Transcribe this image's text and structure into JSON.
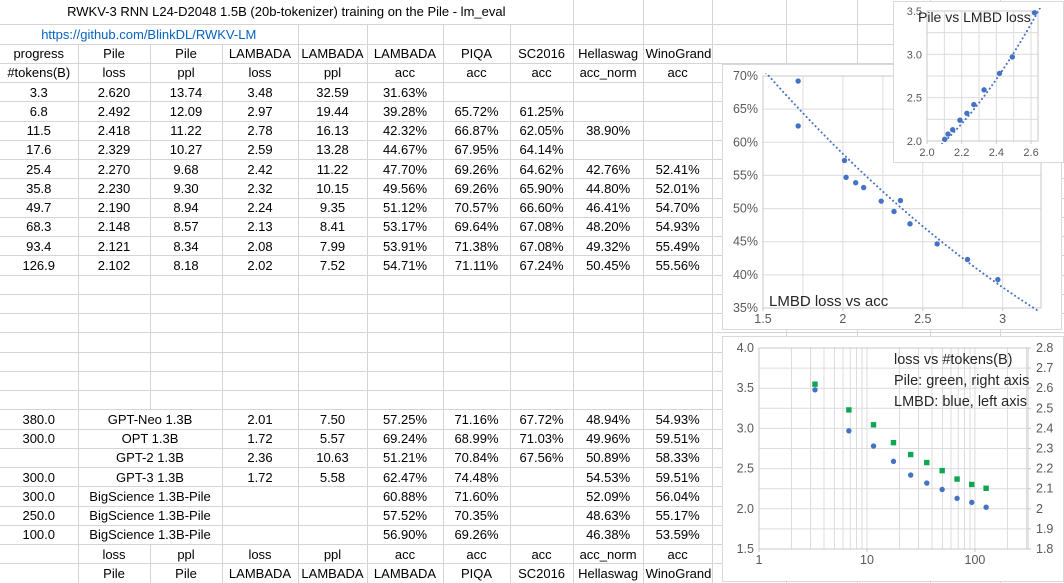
{
  "sheet_title": "RWKV-3 RNN L24-D2048 1.5B (20b-tokenizer) training on the Pile - lm_eval",
  "link_url": "https://github.com/BlinkDL/RWKV-LM",
  "colors": {
    "link_blue": "#0563C1",
    "series_blue": "#4472C4",
    "series_green": "#0CA750",
    "sheet_gridline": "#d4d4d4",
    "chart_gridline": "#dcdcdc",
    "chart_border": "#c8c8c8",
    "tick_text": "#595959"
  },
  "table": {
    "header_row1": [
      "progress",
      "Pile",
      "Pile",
      "LAMBADA",
      "LAMBADA",
      "LAMBADA",
      "PIQA",
      "SC2016",
      "Hellaswag",
      "WinoGrande"
    ],
    "header_row2": [
      "#tokens(B)",
      "loss",
      "ppl",
      "loss",
      "ppl",
      "acc",
      "acc",
      "acc",
      "acc_norm",
      "acc"
    ],
    "rwkv_rows": [
      [
        "3.3",
        "2.620",
        "13.74",
        "3.48",
        "32.59",
        "31.63%",
        "",
        "",
        "",
        ""
      ],
      [
        "6.8",
        "2.492",
        "12.09",
        "2.97",
        "19.44",
        "39.28%",
        "65.72%",
        "61.25%",
        "",
        ""
      ],
      [
        "11.5",
        "2.418",
        "11.22",
        "2.78",
        "16.13",
        "42.32%",
        "66.87%",
        "62.05%",
        "38.90%",
        ""
      ],
      [
        "17.6",
        "2.329",
        "10.27",
        "2.59",
        "13.28",
        "44.67%",
        "67.95%",
        "64.14%",
        "",
        ""
      ],
      [
        "25.4",
        "2.270",
        "9.68",
        "2.42",
        "11.22",
        "47.70%",
        "69.26%",
        "64.62%",
        "42.76%",
        "52.41%"
      ],
      [
        "35.8",
        "2.230",
        "9.30",
        "2.32",
        "10.15",
        "49.56%",
        "69.26%",
        "65.90%",
        "44.80%",
        "52.01%"
      ],
      [
        "49.7",
        "2.190",
        "8.94",
        "2.24",
        "9.35",
        "51.12%",
        "70.57%",
        "66.60%",
        "46.41%",
        "54.70%"
      ],
      [
        "68.3",
        "2.148",
        "8.57",
        "2.13",
        "8.41",
        "53.17%",
        "69.64%",
        "67.08%",
        "48.20%",
        "54.93%"
      ],
      [
        "93.4",
        "2.121",
        "8.34",
        "2.08",
        "7.99",
        "53.91%",
        "71.38%",
        "67.08%",
        "49.32%",
        "55.49%"
      ],
      [
        "126.9",
        "2.102",
        "8.18",
        "2.02",
        "7.52",
        "54.71%",
        "71.11%",
        "67.24%",
        "50.45%",
        "55.56%"
      ]
    ],
    "baseline_rows": [
      [
        "380.0",
        "GPT-Neo 1.3B",
        "2.01",
        "7.50",
        "57.25%",
        "71.16%",
        "67.72%",
        "48.94%",
        "54.93%"
      ],
      [
        "300.0",
        "OPT 1.3B",
        "1.72",
        "5.57",
        "69.24%",
        "68.99%",
        "71.03%",
        "49.96%",
        "59.51%"
      ],
      [
        "",
        "GPT-2 1.3B",
        "2.36",
        "10.63",
        "51.21%",
        "70.84%",
        "67.56%",
        "50.89%",
        "58.33%"
      ],
      [
        "300.0",
        "GPT-3 1.3B",
        "1.72",
        "5.58",
        "62.47%",
        "74.48%",
        "",
        "54.53%",
        "59.51%"
      ],
      [
        "300.0",
        "BigScience 1.3B-Pile",
        "",
        "",
        "60.88%",
        "71.60%",
        "",
        "52.09%",
        "56.04%"
      ],
      [
        "250.0",
        "BigScience 1.3B-Pile",
        "",
        "",
        "57.52%",
        "70.35%",
        "",
        "48.63%",
        "55.17%"
      ],
      [
        "100.0",
        "BigScience 1.3B-Pile",
        "",
        "",
        "56.90%",
        "69.26%",
        "",
        "46.38%",
        "53.59%"
      ]
    ],
    "footer_row1": [
      "",
      "loss",
      "ppl",
      "loss",
      "ppl",
      "acc",
      "acc",
      "acc",
      "acc_norm",
      "acc"
    ],
    "footer_row2": [
      "",
      "Pile",
      "Pile",
      "LAMBADA",
      "LAMBADA",
      "LAMBADA",
      "PIQA",
      "SC2016",
      "Hellaswag",
      "WinoGrande"
    ]
  },
  "chart_data": [
    {
      "type": "scatter",
      "title": "Pile vs LMBD loss",
      "x": [
        2.102,
        2.121,
        2.148,
        2.19,
        2.23,
        2.27,
        2.329,
        2.418,
        2.492,
        2.62
      ],
      "series": [
        {
          "name": "LMBD loss",
          "axis": "left",
          "color_key": "series_blue",
          "marker": "circle",
          "values": [
            2.02,
            2.08,
            2.13,
            2.24,
            2.32,
            2.42,
            2.59,
            2.78,
            2.97,
            3.48
          ]
        }
      ],
      "xlim": [
        2.0,
        2.64
      ],
      "ylim_left": [
        2.0,
        3.5
      ],
      "xtick_vals": [
        2.0,
        2.2,
        2.4,
        2.6
      ],
      "xtick_labels": [
        "2.0",
        "2.2",
        "2.4",
        "2.6"
      ],
      "ytick_left_vals": [
        2.0,
        2.5,
        3.0,
        3.5
      ],
      "ytick_left_labels": [
        "2.0",
        "2.5",
        "3.0",
        "3.5"
      ],
      "xgrid_step": 0.1,
      "ygrid_step": 0.25,
      "trend": [
        [
          2.05,
          1.9
        ],
        [
          2.36,
          2.6
        ],
        [
          2.68,
          3.64
        ]
      ],
      "grid": true,
      "legend_position": "none"
    },
    {
      "type": "scatter",
      "title": "LMBD loss vs acc",
      "x": [
        3.48,
        2.97,
        2.78,
        2.59,
        2.42,
        2.32,
        2.24,
        2.13,
        2.08,
        2.02,
        2.01,
        1.72,
        2.36,
        1.72
      ],
      "series": [
        {
          "name": "LMBD acc",
          "axis": "left",
          "color_key": "series_blue",
          "marker": "circle",
          "values": [
            31.63,
            39.28,
            42.32,
            44.67,
            47.7,
            49.56,
            51.12,
            53.17,
            53.91,
            54.71,
            57.25,
            69.24,
            51.21,
            62.47
          ]
        }
      ],
      "xlim": [
        1.5,
        3.24
      ],
      "ylim_left": [
        35,
        70
      ],
      "xtick_vals": [
        1.5,
        2,
        2.5,
        3
      ],
      "xtick_labels": [
        "1.5",
        "2",
        "2.5",
        "3"
      ],
      "ytick_left_vals": [
        35,
        40,
        45,
        50,
        55,
        60,
        65,
        70
      ],
      "ytick_left_labels": [
        "35%",
        "40%",
        "45%",
        "50%",
        "55%",
        "60%",
        "65%",
        "70%"
      ],
      "xgrid_step": 0.25,
      "ygrid_step": 5,
      "trend": [
        [
          1.5,
          71.0
        ],
        [
          2.37,
          50.0
        ],
        [
          3.26,
          34.0
        ]
      ],
      "grid": true,
      "legend_position": "none"
    },
    {
      "type": "scatter",
      "legend_lines": [
        "loss vs #tokens(B)",
        "Pile: green, right axis",
        "LMBD: blue, left axis"
      ],
      "x": [
        3.3,
        6.8,
        11.5,
        17.6,
        25.4,
        35.8,
        49.7,
        68.3,
        93.4,
        126.9
      ],
      "series": [
        {
          "name": "Pile loss",
          "axis": "right",
          "color_key": "series_green",
          "marker": "square",
          "values": [
            2.62,
            2.492,
            2.418,
            2.329,
            2.27,
            2.23,
            2.19,
            2.148,
            2.121,
            2.102
          ]
        },
        {
          "name": "LMBD loss",
          "axis": "left",
          "color_key": "series_blue",
          "marker": "circle",
          "values": [
            3.48,
            2.97,
            2.78,
            2.59,
            2.42,
            2.32,
            2.24,
            2.13,
            2.08,
            2.02
          ]
        }
      ],
      "xlog": true,
      "xlim": [
        1,
        310
      ],
      "ylim_left": [
        1.5,
        4.0
      ],
      "ylim_right": [
        1.8,
        2.8
      ],
      "xtick_vals": [
        1,
        10,
        100
      ],
      "xtick_labels": [
        "1",
        "10",
        "100"
      ],
      "ytick_left_vals": [
        4.0,
        3.5,
        3.0,
        2.5,
        2.0,
        1.5
      ],
      "ytick_left_labels": [
        "4.0",
        "3.5",
        "3.0",
        "2.5",
        "2.0",
        "1.5"
      ],
      "ytick_right_vals": [
        2.8,
        2.7,
        2.6,
        2.5,
        2.4,
        2.3,
        2.2,
        2.1,
        2.0,
        1.9,
        1.8
      ],
      "ytick_right_labels": [
        "2.8",
        "2.7",
        "2.6",
        "2.5",
        "2.4",
        "2.3",
        "2.2",
        "2.1",
        "2",
        "1.9",
        "1.8"
      ],
      "xgrid_minor": [
        2,
        3,
        4,
        5,
        6,
        7,
        8,
        9,
        20,
        30,
        40,
        50,
        60,
        70,
        80,
        90,
        200,
        300
      ],
      "grid": true,
      "legend_position": "inside-top-right"
    }
  ]
}
